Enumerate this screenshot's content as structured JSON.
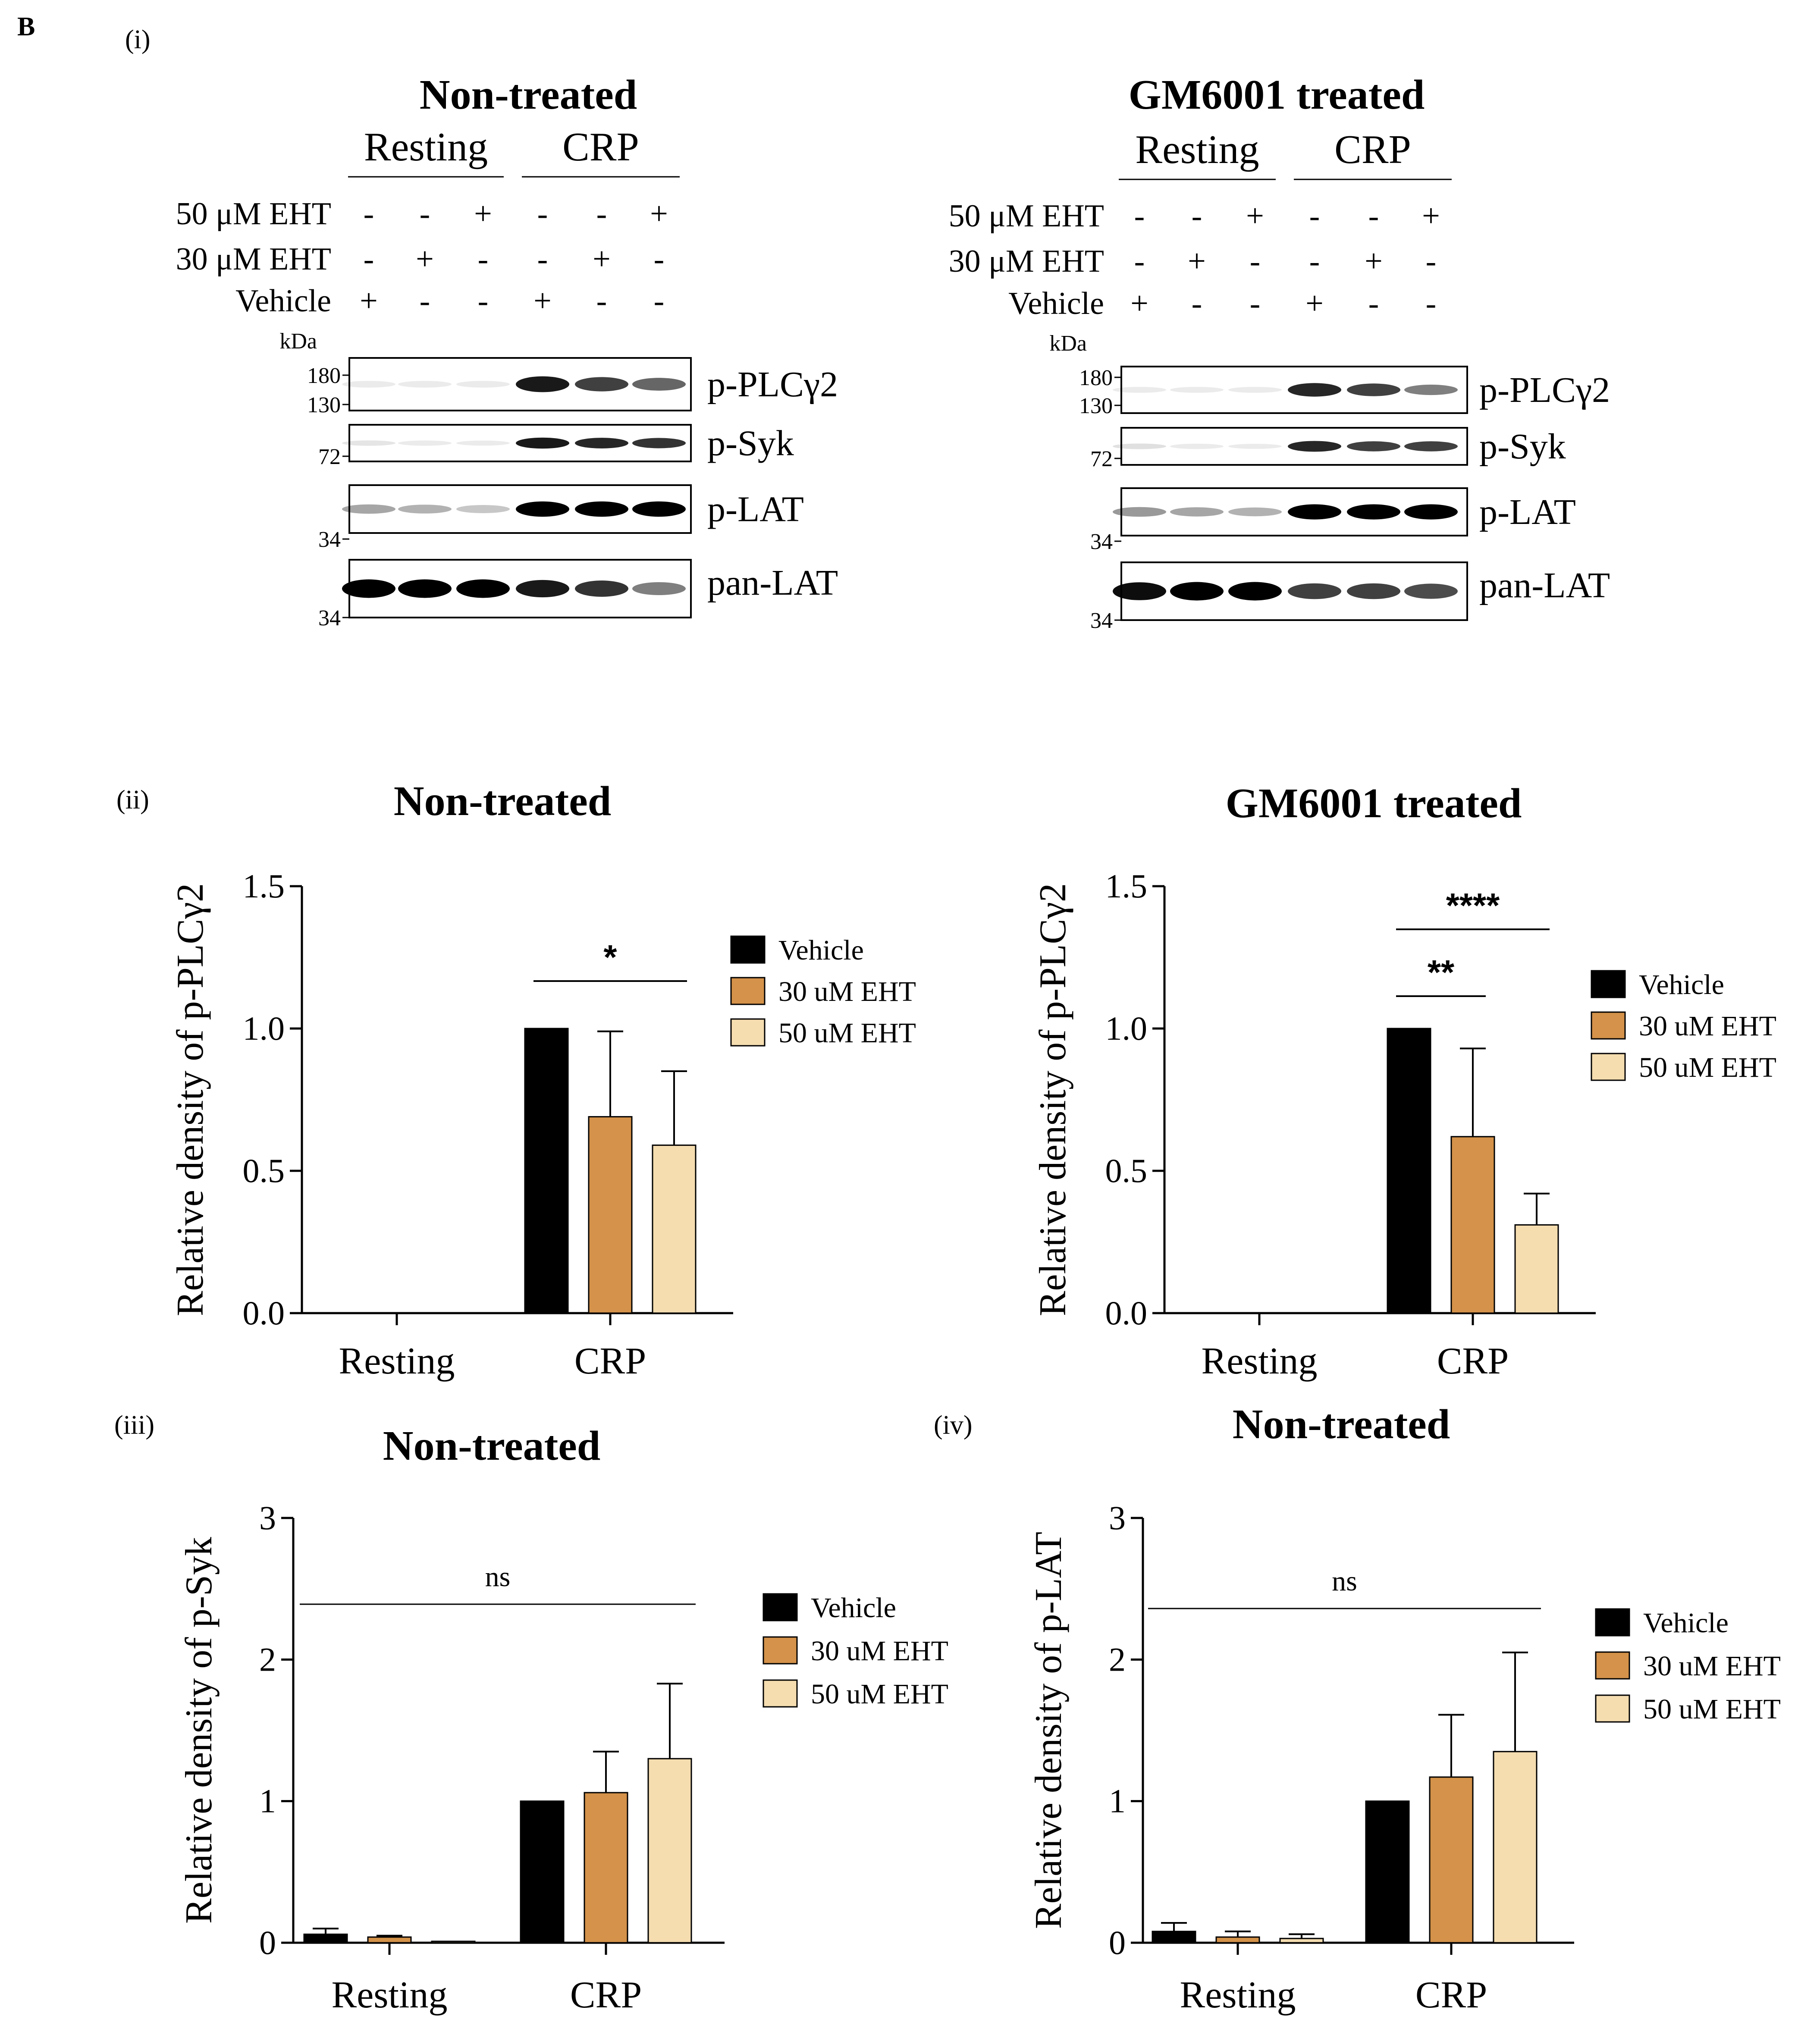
{
  "panel_letter": "B",
  "blot": {
    "panel_label": "(i)",
    "kda_label": "kDa",
    "treat_labels": [
      "50 μM EHT",
      "30 μM EHT",
      "Vehicle"
    ],
    "blots": [
      {
        "title": "Non-treated",
        "groups": [
          "Resting",
          "CRP"
        ],
        "signs": [
          [
            "-",
            "-",
            "+",
            "-",
            "-",
            "+"
          ],
          [
            "-",
            "+",
            "-",
            "-",
            "+",
            "-"
          ],
          [
            "+",
            "-",
            "-",
            "+",
            "-",
            "-"
          ]
        ],
        "markers": [
          [
            "180",
            "130"
          ],
          [
            "72"
          ],
          [
            "34"
          ],
          [
            "34"
          ]
        ],
        "proteins": [
          "p-PLCγ2",
          "p-Syk",
          "p-LAT",
          "pan-LAT"
        ],
        "intensity": [
          [
            0,
            0,
            0,
            0.9,
            0.75,
            0.6
          ],
          [
            0.1,
            0.08,
            0.06,
            0.9,
            0.85,
            0.8
          ],
          [
            0.35,
            0.3,
            0.22,
            1,
            1,
            1
          ],
          [
            1,
            1,
            1,
            0.9,
            0.8,
            0.5
          ]
        ]
      },
      {
        "title": "GM6001 treated",
        "groups": [
          "Resting",
          "CRP"
        ],
        "signs": [
          [
            "-",
            "-",
            "+",
            "-",
            "-",
            "+"
          ],
          [
            "-",
            "+",
            "-",
            "-",
            "+",
            "-"
          ],
          [
            "+",
            "-",
            "-",
            "+",
            "-",
            "-"
          ]
        ],
        "markers": [
          [
            "180",
            "130"
          ],
          [
            "72"
          ],
          [
            "34"
          ],
          [
            "34"
          ]
        ],
        "proteins": [
          "p-PLCγ2",
          "p-Syk",
          "p-LAT",
          "pan-LAT"
        ],
        "intensity": [
          [
            0,
            0,
            0,
            0.85,
            0.75,
            0.5
          ],
          [
            0.12,
            0.08,
            0.05,
            0.85,
            0.75,
            0.75
          ],
          [
            0.4,
            0.35,
            0.3,
            1,
            1,
            1
          ],
          [
            0.95,
            1,
            1,
            0.75,
            0.75,
            0.7
          ]
        ]
      }
    ]
  },
  "chart_data": [
    {
      "panel_label": "(ii)",
      "type": "bar",
      "title": "Non-treated",
      "ylabel": "Relative density of p-PLCγ2",
      "categories": [
        "Resting",
        "CRP"
      ],
      "ylim": [
        0,
        1.5
      ],
      "yticks": [
        "0.0",
        "0.5",
        "1.0",
        "1.5"
      ],
      "ytick_values": [
        0,
        0.5,
        1.0,
        1.5
      ],
      "series": [
        {
          "name": "Vehicle",
          "values": [
            0,
            1.0
          ],
          "errors": [
            0,
            0
          ]
        },
        {
          "name": "30 uM EHT",
          "values": [
            0,
            0.69
          ],
          "errors": [
            0,
            0.3
          ]
        },
        {
          "name": "50 uM EHT",
          "values": [
            0,
            0.59
          ],
          "errors": [
            0,
            0.26
          ]
        }
      ],
      "significance": [
        {
          "label": "*",
          "from": "Vehicle",
          "to": "50 uM EHT",
          "category": "CRP"
        }
      ]
    },
    {
      "panel_label": "",
      "type": "bar",
      "title": "GM6001 treated",
      "ylabel": "Relative density of p-PLCγ2",
      "categories": [
        "Resting",
        "CRP"
      ],
      "ylim": [
        0,
        1.5
      ],
      "yticks": [
        "0.0",
        "0.5",
        "1.0",
        "1.5"
      ],
      "ytick_values": [
        0,
        0.5,
        1.0,
        1.5
      ],
      "series": [
        {
          "name": "Vehicle",
          "values": [
            0,
            1.0
          ],
          "errors": [
            0,
            0
          ]
        },
        {
          "name": "30 uM EHT",
          "values": [
            0,
            0.62
          ],
          "errors": [
            0,
            0.31
          ]
        },
        {
          "name": "50 uM EHT",
          "values": [
            0,
            0.31
          ],
          "errors": [
            0,
            0.11
          ]
        }
      ],
      "significance": [
        {
          "label": "**",
          "from": "Vehicle",
          "to": "30 uM EHT",
          "category": "CRP"
        },
        {
          "label": "****",
          "from": "Vehicle",
          "to": "50 uM EHT",
          "category": "CRP"
        }
      ]
    },
    {
      "panel_label": "(iii)",
      "type": "bar",
      "title": "Non-treated",
      "ylabel": "Relative density of p-Syk",
      "categories": [
        "Resting",
        "CRP"
      ],
      "ylim": [
        0,
        3
      ],
      "yticks": [
        "0",
        "1",
        "2",
        "3"
      ],
      "ytick_values": [
        0,
        1,
        2,
        3
      ],
      "series": [
        {
          "name": "Vehicle",
          "values": [
            0.06,
            1.0
          ],
          "errors": [
            0.04,
            0
          ]
        },
        {
          "name": "30 uM EHT",
          "values": [
            0.04,
            1.06
          ],
          "errors": [
            0.01,
            0.29
          ]
        },
        {
          "name": "50 uM EHT",
          "values": [
            0.01,
            1.3
          ],
          "errors": [
            0,
            0.53
          ]
        }
      ],
      "significance": [
        {
          "label": "ns",
          "span": "all"
        }
      ]
    },
    {
      "panel_label": "(iv)",
      "type": "bar",
      "title": "Non-treated",
      "ylabel": "Relative density of p-LAT",
      "categories": [
        "Resting",
        "CRP"
      ],
      "ylim": [
        0,
        3
      ],
      "yticks": [
        "0",
        "1",
        "2",
        "3"
      ],
      "ytick_values": [
        0,
        1,
        2,
        3
      ],
      "series": [
        {
          "name": "Vehicle",
          "values": [
            0.08,
            1.0
          ],
          "errors": [
            0.06,
            0
          ]
        },
        {
          "name": "30 uM EHT",
          "values": [
            0.04,
            1.17
          ],
          "errors": [
            0.04,
            0.44
          ]
        },
        {
          "name": "50 uM EHT",
          "values": [
            0.03,
            1.35
          ],
          "errors": [
            0.03,
            0.7
          ]
        }
      ],
      "significance": [
        {
          "label": "ns",
          "span": "all"
        }
      ]
    }
  ],
  "colors": {
    "Vehicle": "#000000",
    "30 uM EHT": "#d4924a",
    "50 uM EHT": "#f5ddb0"
  }
}
